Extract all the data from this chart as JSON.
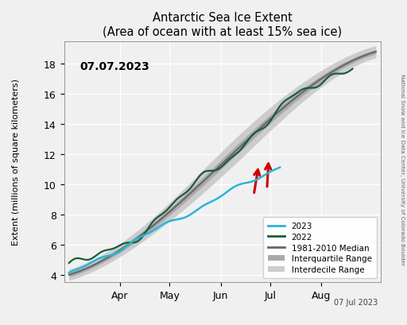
{
  "title": "Antarctic Sea Ice Extent",
  "subtitle": "(Area of ocean with at least 15% sea ice)",
  "date_label": "07.07.2023",
  "ylabel": "Extent (millions of square kilometers)",
  "xlabel_note": "07 Jul 2023",
  "watermark": "National Snow and Ice Data Center, University of Colorado Boulder",
  "ylim": [
    3.5,
    19.5
  ],
  "legend_entries": [
    "2023",
    "2022",
    "1981-2010 Median",
    "Interquartile Range",
    "Interdecile Range"
  ],
  "color_2023": "#29b5d6",
  "color_2022": "#1a5c38",
  "color_median": "#666666",
  "color_iqr": "#aaaaaa",
  "color_idr": "#cccccc",
  "color_arrow": "#cc0000",
  "background_color": "#f0f0f0"
}
